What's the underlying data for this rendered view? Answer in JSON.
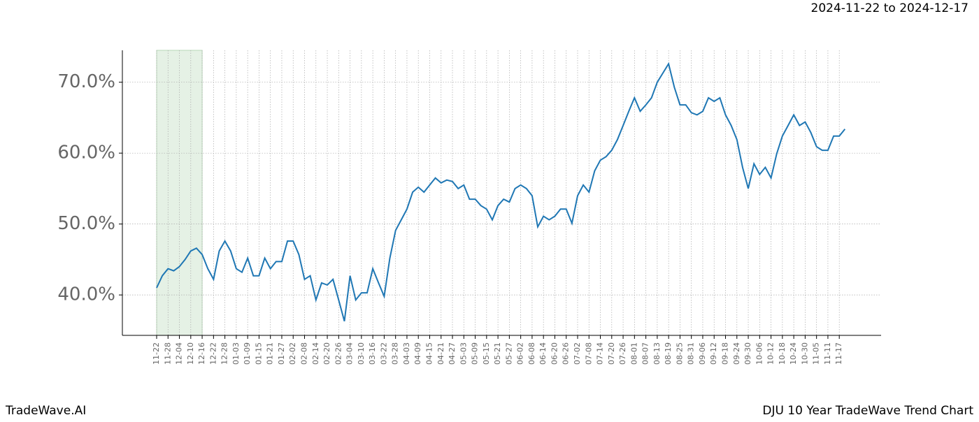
{
  "header": {
    "date_range": "2024-11-22 to 2024-12-17"
  },
  "footer": {
    "brand": "TradeWave.AI",
    "title": "DJU 10 Year TradeWave Trend Chart"
  },
  "chart_data": {
    "type": "line",
    "categories": [
      "11-22",
      null,
      "11-28",
      null,
      "12-04",
      null,
      "12-10",
      null,
      "12-16",
      null,
      "12-22",
      null,
      "12-28",
      null,
      "01-03",
      null,
      "01-09",
      null,
      "01-15",
      null,
      "01-21",
      null,
      "01-27",
      null,
      "02-02",
      null,
      "02-08",
      null,
      "02-14",
      null,
      "02-20",
      null,
      "02-26",
      null,
      "03-04",
      null,
      "03-10",
      null,
      "03-16",
      null,
      "03-22",
      null,
      "03-28",
      null,
      "04-03",
      null,
      "04-09",
      null,
      "04-15",
      null,
      "04-21",
      null,
      "04-27",
      null,
      "05-03",
      null,
      "05-09",
      null,
      "05-15",
      null,
      "05-21",
      null,
      "05-27",
      null,
      "06-02",
      null,
      "06-08",
      null,
      "06-14",
      null,
      "06-20",
      null,
      "06-26",
      null,
      "07-02",
      null,
      "07-08",
      null,
      "07-14",
      null,
      "07-20",
      null,
      "07-26",
      null,
      "08-01",
      null,
      "08-07",
      null,
      "08-13",
      null,
      "08-19",
      null,
      "08-25",
      null,
      "08-31",
      null,
      "09-06",
      null,
      "09-12",
      null,
      "09-18",
      null,
      "09-24",
      null,
      "09-30",
      null,
      "10-06",
      null,
      "10-12",
      null,
      "10-18",
      null,
      "10-24",
      null,
      "10-30",
      null,
      "11-05",
      null,
      "11-11",
      null,
      "11-17",
      null
    ],
    "series": [
      {
        "color": "#1f77b4",
        "values": [
          41.0,
          42.7,
          43.7,
          43.4,
          44.0,
          45.0,
          46.2,
          46.6,
          45.7,
          43.7,
          42.2,
          46.2,
          47.6,
          46.2,
          43.7,
          43.2,
          45.2,
          42.7,
          42.7,
          45.2,
          43.7,
          44.7,
          44.7,
          47.6,
          47.6,
          45.7,
          42.2,
          42.7,
          39.3,
          41.7,
          41.4,
          42.2,
          39.3,
          36.3,
          42.7,
          39.3,
          40.3,
          40.3,
          43.7,
          41.7,
          39.8,
          45.2,
          49.1,
          50.6,
          52.1,
          54.5,
          55.2,
          54.5,
          55.5,
          56.5,
          55.8,
          56.2,
          56.0,
          55.0,
          55.5,
          53.5,
          53.5,
          52.6,
          52.1,
          50.6,
          52.6,
          53.5,
          53.1,
          55.0,
          55.5,
          55.0,
          54.0,
          49.6,
          51.1,
          50.6,
          51.1,
          52.1,
          52.1,
          50.1,
          54.0,
          55.5,
          54.5,
          57.5,
          59.0,
          59.5,
          60.4,
          61.9,
          63.9,
          65.9,
          67.8,
          65.9,
          66.8,
          67.8,
          70.0,
          71.3,
          72.6,
          69.3,
          66.8,
          66.8,
          65.7,
          65.4,
          65.9,
          67.8,
          67.3,
          67.8,
          65.4,
          63.9,
          61.9,
          58.0,
          55.0,
          58.5,
          57.0,
          58.0,
          56.5,
          59.9,
          62.4,
          63.9,
          65.4,
          63.9,
          64.4,
          62.9,
          60.9,
          60.4,
          60.4,
          62.4,
          62.4,
          63.4
        ]
      }
    ],
    "highlight": [
      "11-22",
      "12-16"
    ],
    "ylim": [
      34.3,
      74.5
    ],
    "yticks": [
      {
        "value": 40,
        "label": "40.0%"
      },
      {
        "value": 50,
        "label": "50.0%"
      },
      {
        "value": 60,
        "label": "60.0%"
      },
      {
        "value": 70,
        "label": "70.0%"
      }
    ],
    "grid": true
  }
}
